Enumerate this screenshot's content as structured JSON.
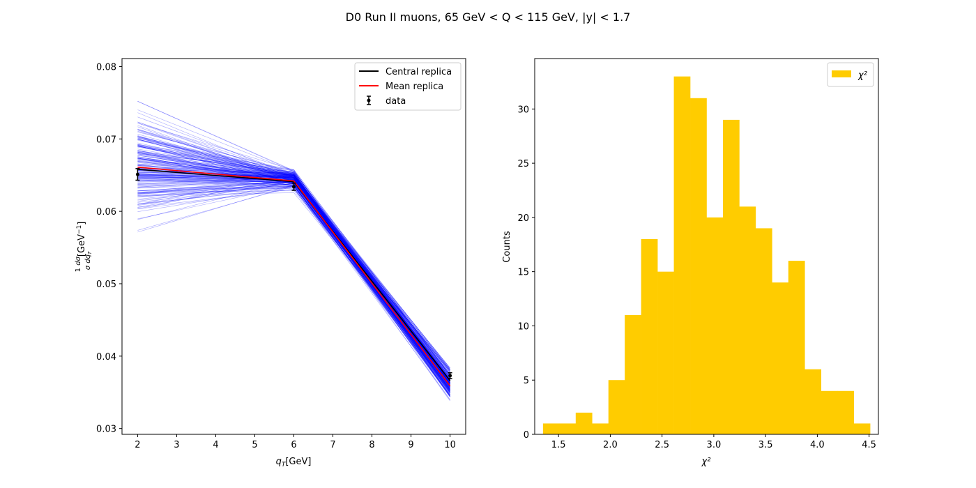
{
  "figure": {
    "title": "D0 Run II muons, 65 GeV < Q < 115 GeV, |y| < 1.7"
  },
  "chart_data": [
    {
      "type": "line",
      "xlabel": "q_T[GeV]",
      "ylabel": "(1/σ) dσ/dq_T [GeV^-1]",
      "xlim": [
        1.6,
        10.4
      ],
      "ylim": [
        0.0292,
        0.0811
      ],
      "x_ticks": [
        "2",
        "3",
        "4",
        "5",
        "6",
        "7",
        "8",
        "9",
        "10"
      ],
      "y_ticks": [
        "0.03",
        "0.04",
        "0.05",
        "0.06",
        "0.07",
        "0.08"
      ],
      "x": [
        2,
        6,
        10
      ],
      "replica_band": {
        "color": "#0000ff",
        "count": 200,
        "y_at_2_range": [
          0.0537,
          0.0788
        ],
        "y_at_6_range": [
          0.0613,
          0.0675
        ],
        "y_at_10_range": [
          0.0316,
          0.0407
        ]
      },
      "series": [
        {
          "name": "Central replica",
          "color": "#000000",
          "values": [
            0.0658,
            0.0641,
            0.0366
          ]
        },
        {
          "name": "Mean replica",
          "color": "#ff0000",
          "values": [
            0.0661,
            0.0642,
            0.0359
          ]
        }
      ],
      "data_points": {
        "name": "data",
        "color": "#000000",
        "x": [
          2,
          6,
          10
        ],
        "y": [
          0.0651,
          0.0634,
          0.0373
        ],
        "yerr": [
          0.0008,
          0.0005,
          0.0004
        ]
      },
      "legend_position": "top-right"
    },
    {
      "type": "bar",
      "title": "",
      "xlabel": "χ²",
      "ylabel": "Counts",
      "xlim": [
        1.27,
        4.59
      ],
      "ylim": [
        0,
        34.65
      ],
      "x_ticks": [
        "1.5",
        "2.0",
        "2.5",
        "3.0",
        "3.5",
        "4.0",
        "4.5"
      ],
      "y_ticks": [
        "0",
        "5",
        "10",
        "15",
        "20",
        "25",
        "30"
      ],
      "bin_edges": [
        1.35,
        1.508,
        1.666,
        1.824,
        1.982,
        2.14,
        2.298,
        2.456,
        2.614,
        2.772,
        2.93,
        3.088,
        3.246,
        3.404,
        3.562,
        3.72,
        3.878,
        4.036,
        4.194,
        4.352,
        4.51
      ],
      "values": [
        1,
        1,
        2,
        1,
        5,
        11,
        18,
        15,
        33,
        31,
        20,
        29,
        21,
        19,
        14,
        16,
        6,
        4,
        4,
        1
      ],
      "color": "#ffcc00",
      "legend": {
        "label": "χ²",
        "position": "top-right"
      }
    }
  ]
}
